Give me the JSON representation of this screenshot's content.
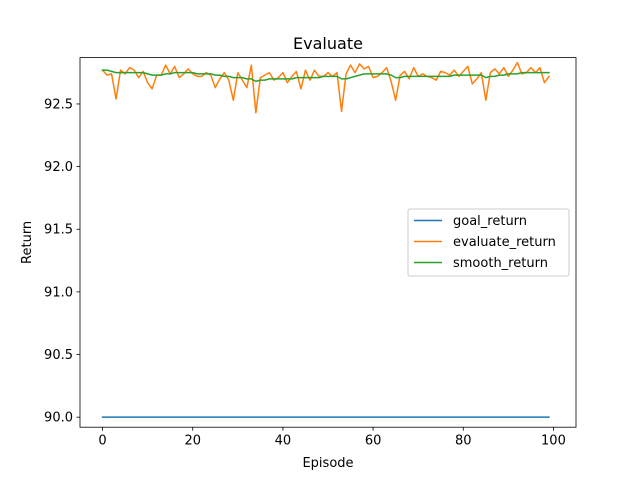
{
  "chart_data": {
    "type": "line",
    "title": "Evaluate",
    "xlabel": "Episode",
    "ylabel": "Return",
    "xlim": [
      -5,
      105
    ],
    "ylim": [
      89.92,
      92.87
    ],
    "x_ticks": [
      0,
      20,
      40,
      60,
      80,
      100
    ],
    "y_ticks": [
      90.0,
      90.5,
      91.0,
      91.5,
      92.0,
      92.5
    ],
    "y_tick_labels": [
      "90.0",
      "90.5",
      "91.0",
      "91.5",
      "92.0",
      "92.5"
    ],
    "x_tick_labels": [
      "0",
      "20",
      "40",
      "60",
      "80",
      "100"
    ],
    "grid": false,
    "legend_position": "center-right",
    "x": [
      0,
      1,
      2,
      3,
      4,
      5,
      6,
      7,
      8,
      9,
      10,
      11,
      12,
      13,
      14,
      15,
      16,
      17,
      18,
      19,
      20,
      21,
      22,
      23,
      24,
      25,
      26,
      27,
      28,
      29,
      30,
      31,
      32,
      33,
      34,
      35,
      36,
      37,
      38,
      39,
      40,
      41,
      42,
      43,
      44,
      45,
      46,
      47,
      48,
      49,
      50,
      51,
      52,
      53,
      54,
      55,
      56,
      57,
      58,
      59,
      60,
      61,
      62,
      63,
      64,
      65,
      66,
      67,
      68,
      69,
      70,
      71,
      72,
      73,
      74,
      75,
      76,
      77,
      78,
      79,
      80,
      81,
      82,
      83,
      84,
      85,
      86,
      87,
      88,
      89,
      90,
      91,
      92,
      93,
      94,
      95,
      96,
      97,
      98,
      99
    ],
    "series": [
      {
        "name": "goal_return",
        "color": "#1f77b4",
        "values": [
          90,
          90,
          90,
          90,
          90,
          90,
          90,
          90,
          90,
          90,
          90,
          90,
          90,
          90,
          90,
          90,
          90,
          90,
          90,
          90,
          90,
          90,
          90,
          90,
          90,
          90,
          90,
          90,
          90,
          90,
          90,
          90,
          90,
          90,
          90,
          90,
          90,
          90,
          90,
          90,
          90,
          90,
          90,
          90,
          90,
          90,
          90,
          90,
          90,
          90,
          90,
          90,
          90,
          90,
          90,
          90,
          90,
          90,
          90,
          90,
          90,
          90,
          90,
          90,
          90,
          90,
          90,
          90,
          90,
          90,
          90,
          90,
          90,
          90,
          90,
          90,
          90,
          90,
          90,
          90,
          90,
          90,
          90,
          90,
          90,
          90,
          90,
          90,
          90,
          90,
          90,
          90,
          90,
          90,
          90,
          90,
          90,
          90,
          90,
          90
        ]
      },
      {
        "name": "evaluate_return",
        "color": "#ff7f0e",
        "values": [
          92.77,
          92.73,
          92.74,
          92.54,
          92.77,
          92.74,
          92.79,
          92.77,
          92.71,
          92.76,
          92.67,
          92.62,
          92.73,
          92.73,
          92.81,
          92.74,
          92.8,
          92.71,
          92.74,
          92.78,
          92.74,
          92.72,
          92.72,
          92.75,
          92.73,
          92.63,
          92.7,
          92.75,
          92.69,
          92.53,
          92.75,
          92.69,
          92.63,
          92.81,
          92.43,
          92.71,
          92.73,
          92.75,
          92.69,
          92.71,
          92.75,
          92.67,
          92.72,
          92.76,
          92.62,
          92.77,
          92.69,
          92.77,
          92.72,
          92.72,
          92.75,
          92.72,
          92.75,
          92.44,
          92.74,
          92.81,
          92.75,
          92.82,
          92.78,
          92.8,
          92.71,
          92.72,
          92.75,
          92.79,
          92.68,
          92.53,
          92.73,
          92.76,
          92.7,
          92.79,
          92.72,
          92.74,
          92.72,
          92.71,
          92.69,
          92.76,
          92.75,
          92.73,
          92.77,
          92.72,
          92.76,
          92.8,
          92.66,
          92.7,
          92.75,
          92.53,
          92.75,
          92.78,
          92.74,
          92.79,
          92.72,
          92.77,
          92.83,
          92.74,
          92.75,
          92.79,
          92.75,
          92.79,
          92.67,
          92.72
        ]
      },
      {
        "name": "smooth_return",
        "color": "#2ca02c",
        "values": [
          92.77,
          92.77,
          92.76,
          92.75,
          92.75,
          92.75,
          92.75,
          92.75,
          92.75,
          92.75,
          92.74,
          92.73,
          92.73,
          92.73,
          92.74,
          92.74,
          92.75,
          92.75,
          92.75,
          92.75,
          92.75,
          92.74,
          92.74,
          92.74,
          92.74,
          92.73,
          92.73,
          92.72,
          92.72,
          92.71,
          92.71,
          92.71,
          92.7,
          92.7,
          92.68,
          92.69,
          92.69,
          92.7,
          92.7,
          92.7,
          92.7,
          92.7,
          92.7,
          92.71,
          92.71,
          92.71,
          92.71,
          92.71,
          92.71,
          92.72,
          92.72,
          92.72,
          92.72,
          92.7,
          92.7,
          92.71,
          92.72,
          92.73,
          92.74,
          92.74,
          92.74,
          92.74,
          92.74,
          92.74,
          92.73,
          92.71,
          92.71,
          92.72,
          92.72,
          92.72,
          92.72,
          92.72,
          92.72,
          92.72,
          92.72,
          92.72,
          92.72,
          92.72,
          92.73,
          92.73,
          92.73,
          92.73,
          92.73,
          92.73,
          92.73,
          92.71,
          92.72,
          92.72,
          92.73,
          92.73,
          92.74,
          92.74,
          92.74,
          92.75,
          92.75,
          92.75,
          92.75,
          92.75,
          92.75,
          92.75
        ]
      }
    ]
  }
}
